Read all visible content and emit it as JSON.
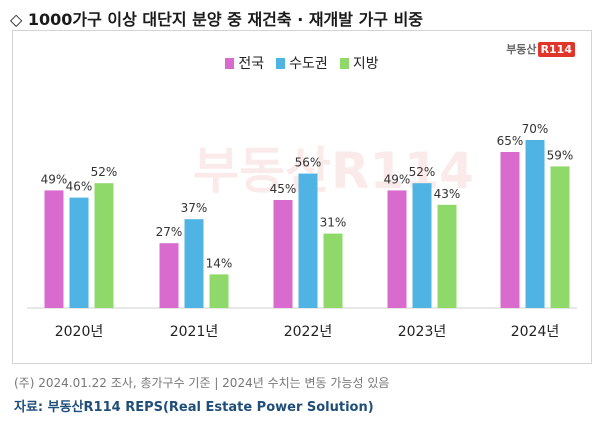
{
  "title": "◇ 1000가구 이상 대단지 분양 중 재건축 · 재개발 가구 비중",
  "logo": {
    "text": "부동산",
    "badge": "R114"
  },
  "watermark": "부동산R114",
  "footnote": "(주) 2024.01.22 조사, 총가구수 기준 | 2024년 수치는 변동 가능성 있음",
  "source": "자료: 부동산R114 REPS(Real Estate Power Solution)",
  "chart_data": {
    "type": "bar",
    "title": "1000가구 이상 대단지 분양 중 재건축 · 재개발 가구 비중",
    "categories": [
      "2020년",
      "2021년",
      "2022년",
      "2023년",
      "2024년"
    ],
    "series": [
      {
        "name": "전국",
        "color": "#d96bce",
        "values": [
          49,
          27,
          45,
          49,
          65
        ],
        "labels": [
          "49%",
          "27%",
          "45%",
          "49%",
          "65%"
        ]
      },
      {
        "name": "수도권",
        "color": "#4fb3e3",
        "values": [
          46,
          37,
          56,
          52,
          70
        ],
        "labels": [
          "46%",
          "37%",
          "56%",
          "52%",
          "70%"
        ]
      },
      {
        "name": "지방",
        "color": "#8fd96b",
        "values": [
          52,
          14,
          31,
          43,
          59
        ],
        "labels": [
          "52%",
          "14%",
          "31%",
          "43%",
          "59%"
        ]
      }
    ],
    "ylim": [
      0,
      100
    ],
    "xlabel": "",
    "ylabel": "",
    "legend": "top-center",
    "grid": false
  }
}
